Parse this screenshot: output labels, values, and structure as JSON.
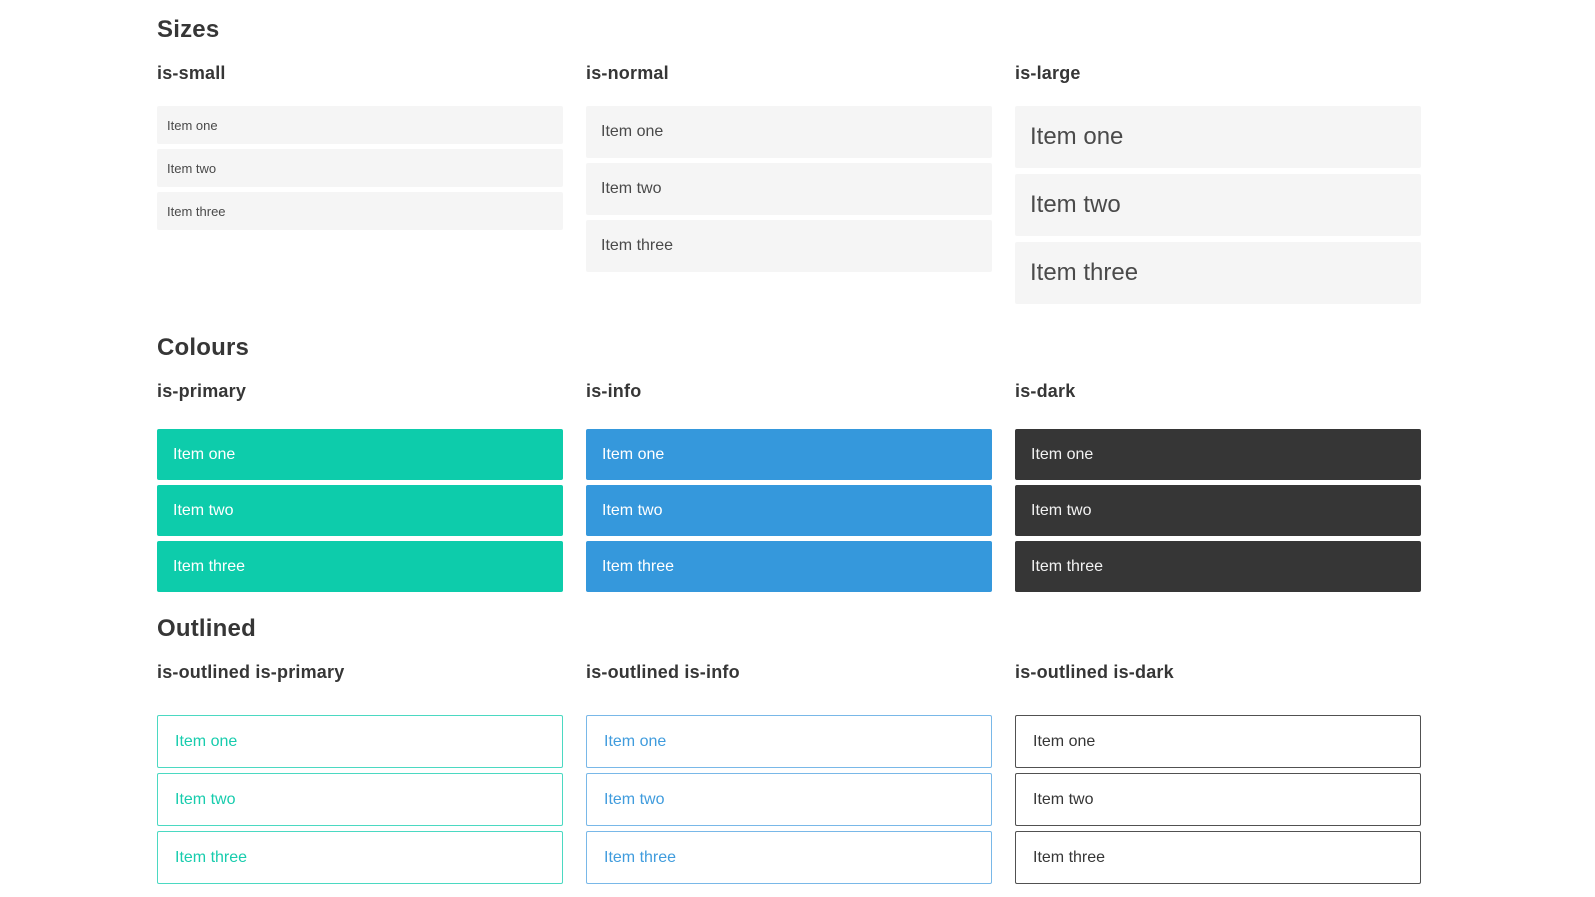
{
  "page": {
    "background": "#ffffff"
  },
  "colors": {
    "page_bg": "#ffffff",
    "heading_text": "#363636",
    "item_bg": "#f5f5f5",
    "item_text": "#4a4a4a",
    "text_on_color": "#ffffff",
    "text_on_dark": "#f2f2f2",
    "primary_fill": "#0dccab",
    "info_fill": "#3598dc",
    "dark_fill": "#363636",
    "primary_outline_border": "#4bd9c2",
    "primary_outline_text": "#17ccad",
    "info_outline_border": "#79b8e8",
    "info_outline_text": "#409cdd",
    "dark_outline_border": "#515151",
    "dark_outline_text": "#363636"
  },
  "sections": [
    {
      "title": "Sizes",
      "columns": [
        {
          "label": "is-small",
          "items": [
            "Item one",
            "Item two",
            "Item three"
          ]
        },
        {
          "label": "is-normal",
          "items": [
            "Item one",
            "Item two",
            "Item three"
          ]
        },
        {
          "label": "is-large",
          "items": [
            "Item one",
            "Item two",
            "Item three"
          ]
        }
      ]
    },
    {
      "title": "Colours",
      "columns": [
        {
          "label": "is-primary",
          "items": [
            "Item one",
            "Item two",
            "Item three"
          ]
        },
        {
          "label": "is-info",
          "items": [
            "Item one",
            "Item two",
            "Item three"
          ]
        },
        {
          "label": "is-dark",
          "items": [
            "Item one",
            "Item two",
            "Item three"
          ]
        }
      ]
    },
    {
      "title": "Outlined",
      "columns": [
        {
          "label": "is-outlined is-primary",
          "items": [
            "Item one",
            "Item two",
            "Item three"
          ]
        },
        {
          "label": "is-outlined is-info",
          "items": [
            "Item one",
            "Item two",
            "Item three"
          ]
        },
        {
          "label": "is-outlined is-dark",
          "items": [
            "Item one",
            "Item two",
            "Item three"
          ]
        }
      ]
    }
  ]
}
